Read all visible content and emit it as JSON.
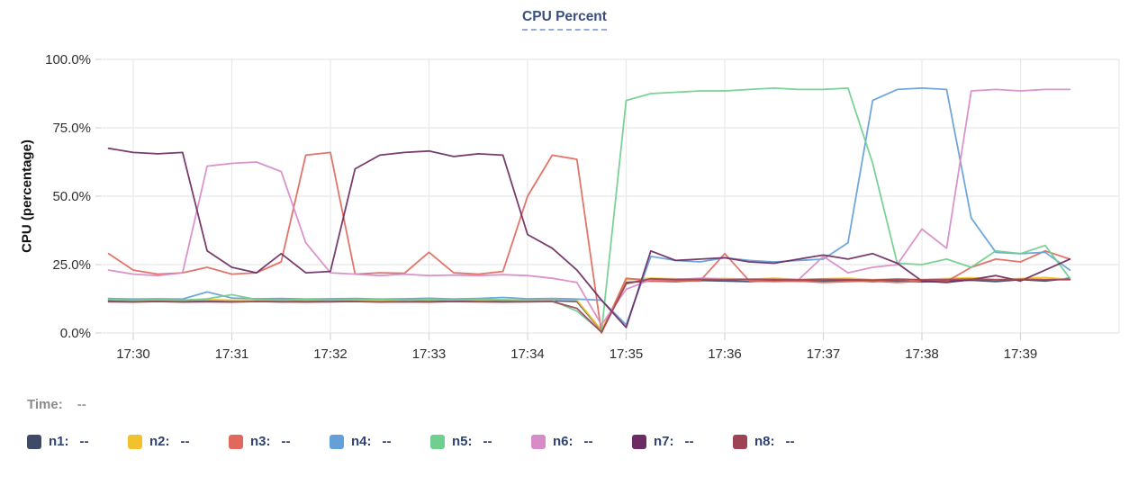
{
  "status": {
    "time_label": "Time:",
    "time_value": "--"
  },
  "legend": {
    "items": [
      {
        "id": "n1",
        "label": "n1:",
        "value": "--"
      },
      {
        "id": "n2",
        "label": "n2:",
        "value": "--"
      },
      {
        "id": "n3",
        "label": "n3:",
        "value": "--"
      },
      {
        "id": "n4",
        "label": "n4:",
        "value": "--"
      },
      {
        "id": "n5",
        "label": "n5:",
        "value": "--"
      },
      {
        "id": "n6",
        "label": "n6:",
        "value": "--"
      },
      {
        "id": "n7",
        "label": "n7:",
        "value": "--"
      },
      {
        "id": "n8",
        "label": "n8:",
        "value": "--"
      }
    ]
  },
  "chart_data": {
    "type": "line",
    "title": "CPU Percent",
    "xlabel": "",
    "ylabel": "CPU (percentage)",
    "ylim": [
      0,
      100
    ],
    "grid": true,
    "y_tick_values": [
      100,
      75,
      50,
      25,
      0
    ],
    "y_tick_labels": [
      "100.0%",
      "75.0%",
      "50.0%",
      "25.0%",
      "0.0%"
    ],
    "x_ticks": [
      "17:30",
      "17:31",
      "17:32",
      "17:33",
      "17:34",
      "17:35",
      "17:36",
      "17:37",
      "17:38",
      "17:39"
    ],
    "times": [
      "17:29:45",
      "17:30:00",
      "17:30:15",
      "17:30:30",
      "17:30:45",
      "17:31:00",
      "17:31:15",
      "17:31:30",
      "17:31:45",
      "17:32:00",
      "17:32:15",
      "17:32:30",
      "17:32:45",
      "17:33:00",
      "17:33:15",
      "17:33:30",
      "17:33:45",
      "17:34:00",
      "17:34:15",
      "17:34:30",
      "17:34:45",
      "17:35:00",
      "17:35:15",
      "17:35:30",
      "17:35:45",
      "17:36:00",
      "17:36:15",
      "17:36:30",
      "17:36:45",
      "17:37:00",
      "17:37:15",
      "17:37:30",
      "17:37:45",
      "17:38:00",
      "17:38:15",
      "17:38:30",
      "17:38:45",
      "17:39:00",
      "17:39:15",
      "17:39:30"
    ],
    "series": [
      {
        "name": "n1",
        "color": "#3E4A66",
        "values": [
          11.8,
          11.5,
          11.6,
          11.5,
          11.7,
          11.5,
          11.6,
          11.4,
          11.6,
          11.5,
          11.6,
          11.5,
          11.4,
          11.6,
          11.5,
          11.7,
          11.5,
          11.6,
          11.8,
          11.5,
          0.8,
          18.5,
          19,
          18.8,
          19.2,
          19,
          18.8,
          19.1,
          18.9,
          19,
          19.2,
          18.8,
          19,
          18.7,
          19,
          19.3,
          18.8,
          19.5,
          19,
          20
        ]
      },
      {
        "name": "n2",
        "color": "#F2C12E",
        "values": [
          12.2,
          12,
          12.1,
          12,
          12.2,
          12,
          11.9,
          12.1,
          12,
          12.1,
          12,
          11.9,
          12.1,
          12,
          12.2,
          12,
          12.1,
          12,
          12.2,
          12,
          1,
          19.5,
          20,
          19.8,
          19.6,
          19.9,
          19.7,
          20,
          19.6,
          19.8,
          20,
          19.5,
          19.8,
          19.6,
          19.9,
          20.2,
          19.6,
          19.9,
          20.3,
          19.5
        ]
      },
      {
        "name": "n3",
        "color": "#E0685C",
        "values": [
          29,
          23,
          21.5,
          22,
          24,
          21.5,
          22,
          26,
          65,
          66,
          21.5,
          22,
          21.8,
          29.5,
          22,
          21.5,
          22.5,
          50,
          65,
          63.5,
          0,
          20,
          19,
          19,
          19,
          29,
          19,
          18.8,
          19,
          18.5,
          18.8,
          19,
          18.5,
          19,
          18.8,
          24,
          27,
          26,
          30,
          27
        ]
      },
      {
        "name": "n4",
        "color": "#64A0D8",
        "values": [
          12.6,
          12.4,
          12.5,
          12.4,
          15,
          12.8,
          12.5,
          12.6,
          12.4,
          12.5,
          12.6,
          12.4,
          12.5,
          12.7,
          12.4,
          12.6,
          13,
          12.5,
          12.6,
          12.4,
          12,
          3,
          28,
          26.5,
          26,
          27.5,
          26.5,
          26,
          26.5,
          27,
          33,
          85,
          89,
          89.5,
          89,
          42,
          29.5,
          29,
          29.5,
          23
        ]
      },
      {
        "name": "n5",
        "color": "#70CE8E",
        "values": [
          12.3,
          12,
          12.2,
          12,
          12.5,
          14,
          12.2,
          12,
          12.3,
          12,
          12.2,
          12.4,
          12,
          12.2,
          12,
          12.3,
          12.1,
          12,
          11.8,
          8,
          0.5,
          85,
          87.5,
          88,
          88.5,
          88.5,
          89,
          89.5,
          89,
          89,
          89.5,
          62,
          25.5,
          25,
          27,
          24,
          30,
          29,
          32,
          20
        ]
      },
      {
        "name": "n6",
        "color": "#D78BC7",
        "values": [
          23,
          21.5,
          21,
          22,
          61,
          62,
          62.5,
          59,
          33,
          22,
          21.5,
          21,
          21.5,
          21,
          21.2,
          21,
          21.3,
          21,
          20,
          18.5,
          3,
          16,
          19.5,
          19.5,
          20,
          19.8,
          19.5,
          19.7,
          19.5,
          28,
          22,
          24,
          25,
          38,
          31,
          88.5,
          89,
          88.5,
          89,
          89
        ]
      },
      {
        "name": "n7",
        "color": "#6C2B63",
        "values": [
          67.5,
          66,
          65.5,
          66,
          30,
          24,
          22,
          29,
          22,
          22.5,
          60,
          65,
          66,
          66.5,
          64.5,
          65.5,
          65,
          36,
          31,
          23,
          12,
          2,
          30,
          26.5,
          27,
          27.5,
          26,
          25.5,
          27,
          28.5,
          27,
          29,
          25.5,
          19,
          18.5,
          19.5,
          21,
          19,
          23,
          27
        ]
      },
      {
        "name": "n8",
        "color": "#9E4355",
        "values": [
          11.4,
          11.3,
          11.5,
          11.3,
          11.4,
          11.3,
          11.5,
          11.4,
          11.3,
          11.4,
          11.5,
          11.3,
          11.4,
          11.3,
          11.5,
          11.4,
          11.3,
          11.4,
          11.5,
          9,
          0.3,
          18,
          19.8,
          19.5,
          19.6,
          19.4,
          19.6,
          19.5,
          19.4,
          19.6,
          19.5,
          19.3,
          19.6,
          19.4,
          19.5,
          19.7,
          19.4,
          19.6,
          19.5,
          19.5
        ]
      }
    ]
  }
}
